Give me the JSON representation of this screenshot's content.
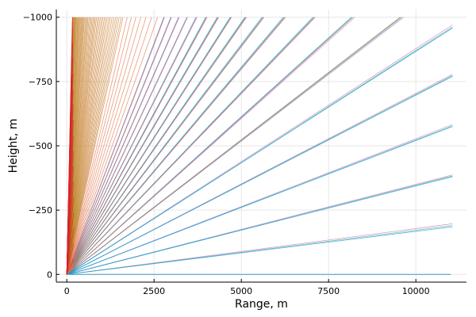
{
  "chart_data": {
    "type": "line",
    "title": "",
    "xlabel": "Range, m",
    "ylabel": "Height, m",
    "xlim": [
      -300,
      11450
    ],
    "ylim": [
      -1030,
      30
    ],
    "y_axis_reversed": true,
    "grid": true,
    "legend": "none",
    "x_ticks": [
      {
        "value": 0,
        "label": "0"
      },
      {
        "value": 2500,
        "label": "2500"
      },
      {
        "value": 5000,
        "label": "5000"
      },
      {
        "value": 7500,
        "label": "7500"
      },
      {
        "value": 10000,
        "label": "10000"
      }
    ],
    "y_ticks": [
      {
        "value": 0,
        "label": "0"
      },
      {
        "value": -250,
        "label": "−250"
      },
      {
        "value": -500,
        "label": "−500"
      },
      {
        "value": -750,
        "label": "−750"
      },
      {
        "value": -1000,
        "label": "−1000"
      }
    ],
    "series_groups": [
      {
        "color": "#c271d2",
        "rays": [
          [
            11000,
            0
          ],
          [
            11050,
            -197
          ],
          [
            11050,
            -387
          ],
          [
            11050,
            -583
          ],
          [
            11050,
            -778
          ],
          [
            11050,
            -970
          ],
          [
            9650,
            -1000
          ],
          [
            8250,
            -1000
          ],
          [
            7120,
            -1000
          ],
          [
            6270,
            -1000
          ],
          [
            5650,
            -1000
          ],
          [
            5150,
            -1000
          ],
          [
            4720,
            -1000
          ],
          [
            4350,
            -1000
          ],
          [
            4020,
            -1000
          ],
          [
            3730,
            -1000
          ],
          [
            3460,
            -1000
          ],
          [
            3220,
            -1000
          ],
          [
            3000,
            -1000
          ],
          [
            2800,
            -1000
          ]
        ]
      },
      {
        "color": "#3da44d",
        "rays": [
          [
            11000,
            0
          ],
          [
            11050,
            -190
          ],
          [
            11050,
            -383
          ],
          [
            11050,
            -578
          ],
          [
            11050,
            -773
          ],
          [
            11050,
            -962
          ],
          [
            9600,
            -1000
          ],
          [
            8180,
            -1000
          ],
          [
            7080,
            -1000
          ],
          [
            6230,
            -1000
          ],
          [
            5620,
            -1000
          ],
          [
            5120,
            -1000
          ],
          [
            4700,
            -1000
          ],
          [
            4330,
            -1000
          ],
          [
            4000,
            -1000
          ]
        ]
      },
      {
        "color": "#009af9",
        "rays": [
          [
            11000,
            0
          ],
          [
            11050,
            -185
          ],
          [
            11050,
            -380
          ],
          [
            11050,
            -575
          ],
          [
            11050,
            -770
          ],
          [
            11050,
            -958
          ],
          [
            9560,
            -1000
          ],
          [
            8150,
            -1000
          ],
          [
            7050,
            -1000
          ],
          [
            6200,
            -1000
          ],
          [
            5590,
            -1000
          ],
          [
            5100,
            -1000
          ],
          [
            4680,
            -1000
          ],
          [
            4310,
            -1000
          ],
          [
            3980,
            -1000
          ],
          [
            3700,
            -1000
          ],
          [
            3440,
            -1000
          ],
          [
            3200,
            -1000
          ],
          [
            2980,
            -1000
          ],
          [
            2780,
            -1000
          ]
        ]
      },
      {
        "color": "#e26f46",
        "rays": [
          [
            9550,
            -1000
          ],
          [
            8200,
            -1000
          ],
          [
            7100,
            -1000
          ],
          [
            6250,
            -1000
          ],
          [
            5640,
            -1000
          ],
          [
            5140,
            -1000
          ],
          [
            4710,
            -1000
          ],
          [
            4340,
            -1000
          ],
          [
            4010,
            -1000
          ],
          [
            3720,
            -1000
          ],
          [
            3450,
            -1000
          ],
          [
            3210,
            -1000
          ],
          [
            2990,
            -1000
          ],
          [
            2790,
            -1000
          ],
          [
            2600,
            -1000
          ],
          [
            2430,
            -1000
          ],
          [
            2270,
            -1000
          ],
          [
            2120,
            -1000
          ],
          [
            1980,
            -1000
          ],
          [
            1850,
            -1000
          ],
          [
            1730,
            -1000
          ],
          [
            1610,
            -1000
          ],
          [
            1500,
            -1000
          ],
          [
            1400,
            -1000
          ],
          [
            1300,
            -1000
          ],
          [
            1210,
            -1000
          ],
          [
            1120,
            -1000
          ],
          [
            1040,
            -1000
          ],
          [
            960,
            -1000
          ],
          [
            890,
            -1000
          ],
          [
            820,
            -1000
          ],
          [
            760,
            -1000
          ],
          [
            700,
            -1000
          ],
          [
            640,
            -1000
          ],
          [
            590,
            -1000
          ],
          [
            540,
            -1000
          ],
          [
            490,
            -1000
          ],
          [
            450,
            -1000
          ],
          [
            410,
            -1000
          ],
          [
            370,
            -1000
          ],
          [
            340,
            -1000
          ],
          [
            310,
            -1000
          ],
          [
            280,
            -1000
          ],
          [
            250,
            -1000
          ],
          [
            230,
            -1000
          ],
          [
            210,
            -1000
          ],
          [
            190,
            -1000
          ],
          [
            180,
            -1000
          ],
          [
            170,
            -1000
          ],
          [
            160,
            -1000
          ]
        ]
      },
      {
        "color": "#ac8d18",
        "rays": [
          [
            1560,
            -1000
          ],
          [
            1450,
            -1000
          ],
          [
            1350,
            -1000
          ],
          [
            1250,
            -1000
          ],
          [
            1160,
            -1000
          ],
          [
            1080,
            -1000
          ],
          [
            1000,
            -1000
          ],
          [
            920,
            -1000
          ],
          [
            850,
            -1000
          ],
          [
            790,
            -1000
          ],
          [
            730,
            -1000
          ],
          [
            670,
            -1000
          ],
          [
            610,
            -1000
          ],
          [
            560,
            -1000
          ],
          [
            510,
            -1000
          ],
          [
            470,
            -1000
          ],
          [
            430,
            -1000
          ],
          [
            390,
            -1000
          ],
          [
            350,
            -1000
          ],
          [
            320,
            -1000
          ],
          [
            290,
            -1000
          ],
          [
            260,
            -1000
          ],
          [
            240,
            -1000
          ],
          [
            220,
            -1000
          ],
          [
            200,
            -1000
          ]
        ]
      },
      {
        "color": "#da1f28",
        "rays": [
          [
            165,
            -1000
          ],
          [
            170,
            -960
          ],
          [
            172,
            -900
          ],
          [
            175,
            -840
          ],
          [
            178,
            -780
          ],
          [
            180,
            -720
          ],
          [
            182,
            -660
          ],
          [
            184,
            -600
          ],
          [
            186,
            -540
          ],
          [
            188,
            -480
          ],
          [
            190,
            -420
          ],
          [
            192,
            -360
          ],
          [
            194,
            -300
          ],
          [
            196,
            -240
          ],
          [
            198,
            -180
          ],
          [
            200,
            -120
          ],
          [
            202,
            -60
          ],
          [
            160,
            -980
          ],
          [
            150,
            -900
          ],
          [
            140,
            -820
          ],
          [
            130,
            -740
          ],
          [
            120,
            -660
          ],
          [
            110,
            -580
          ],
          [
            100,
            -500
          ],
          [
            90,
            -420
          ]
        ]
      }
    ]
  }
}
